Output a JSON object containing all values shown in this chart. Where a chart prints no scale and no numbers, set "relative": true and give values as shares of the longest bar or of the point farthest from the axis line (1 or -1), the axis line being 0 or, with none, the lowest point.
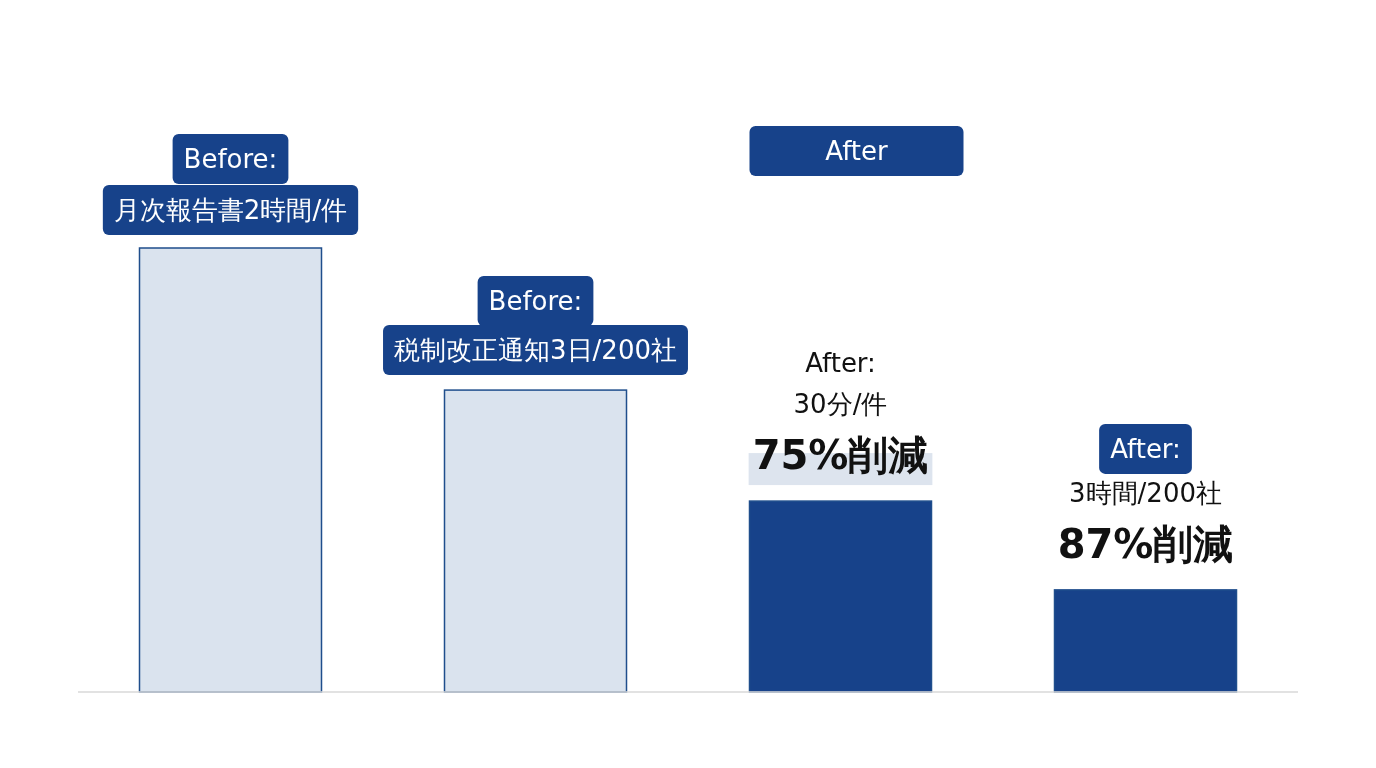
{
  "chart_data": {
    "type": "bar",
    "relative": true,
    "categories": [
      null,
      null,
      null,
      null
    ],
    "values": [
      1,
      0.68,
      0.43,
      0.23
    ],
    "colors": [
      "#dae3ee",
      "#dae3ee",
      "#17428a",
      "#17428a"
    ],
    "annotations": [
      "Before:",
      "月次報告書2時間/件",
      "Before:",
      "税制改正通知3日/200社",
      "After",
      "After:",
      "30分/件",
      "75%削減",
      "After:",
      "3時間/200社",
      "87%削減"
    ]
  }
}
